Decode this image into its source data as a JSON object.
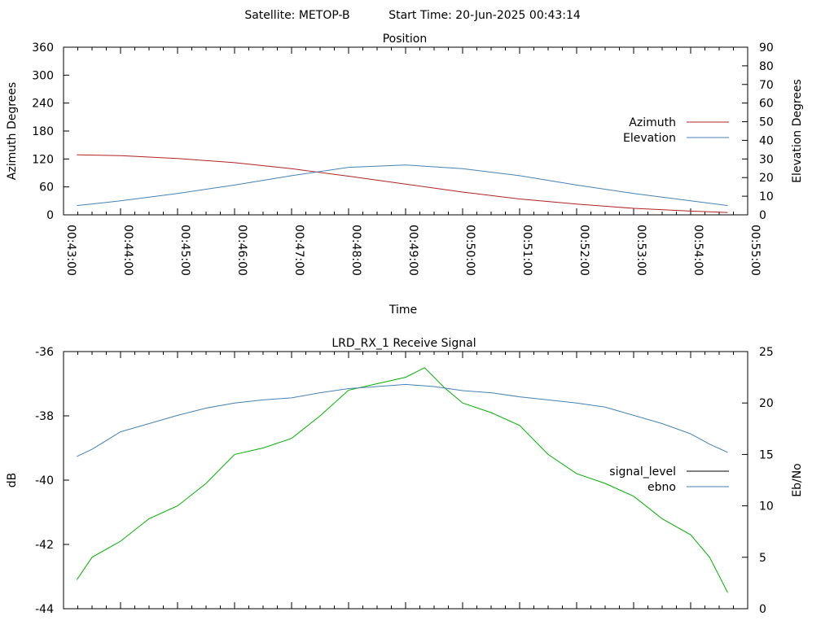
{
  "header": {
    "satellite": "Satellite: METOP-B",
    "start_time": "Start Time: 20-Jun-2025 00:43:14"
  },
  "chart_data": [
    {
      "type": "line",
      "title": "Position",
      "xlabel": "Time",
      "ylabel": "Azimuth Degrees",
      "y2label": "Elevation Degrees",
      "ylim": [
        0,
        360
      ],
      "y2lim": [
        0,
        90
      ],
      "yticks": [
        "0",
        "60",
        "120",
        "180",
        "240",
        "300",
        "360"
      ],
      "y2ticks": [
        "0",
        "10",
        "20",
        "30",
        "40",
        "50",
        "60",
        "70",
        "80",
        "90"
      ],
      "xticks": [
        "00:43:00",
        "00:44:00",
        "00:45:00",
        "00:46:00",
        "00:47:00",
        "00:48:00",
        "00:49:00",
        "00:50:00",
        "00:51:00",
        "00:52:00",
        "00:53:00",
        "00:54:00",
        "00:55:00"
      ],
      "legend_position": "right",
      "series": [
        {
          "name": "Azimuth",
          "axis": "left",
          "color": "#b22222",
          "x": [
            "00:43:14",
            "00:44:00",
            "00:45:00",
            "00:46:00",
            "00:47:00",
            "00:48:00",
            "00:49:00",
            "00:50:00",
            "00:51:00",
            "00:52:00",
            "00:53:00",
            "00:54:00",
            "00:54:39"
          ],
          "values": [
            129,
            127,
            121,
            112,
            99,
            83,
            66,
            49,
            34,
            23,
            14,
            8,
            5
          ]
        },
        {
          "name": "Elevation",
          "axis": "right",
          "color": "#4682b4",
          "x": [
            "00:43:14",
            "00:44:00",
            "00:45:00",
            "00:46:00",
            "00:47:00",
            "00:48:00",
            "00:49:00",
            "00:50:00",
            "00:51:00",
            "00:52:00",
            "00:53:00",
            "00:54:00",
            "00:54:39"
          ],
          "values": [
            5,
            7.5,
            11.5,
            16,
            21,
            25.5,
            26.8,
            24.8,
            21,
            16,
            11.5,
            7.5,
            5
          ]
        }
      ]
    },
    {
      "type": "line",
      "title": "LRD_RX_1 Receive Signal",
      "xlabel": "",
      "ylabel": "dB",
      "y2label": "Eb/No",
      "ylim": [
        -44,
        -36
      ],
      "y2lim": [
        0,
        25
      ],
      "yticks": [
        "-44",
        "-42",
        "-40",
        "-38",
        "-36"
      ],
      "y2ticks": [
        "0",
        "5",
        "10",
        "15",
        "20",
        "25"
      ],
      "legend_position": "right",
      "series": [
        {
          "name": "signal_level",
          "axis": "left",
          "legend_color": "#000000",
          "color": "#00b000",
          "x": [
            "00:43:14",
            "00:43:30",
            "00:44:00",
            "00:44:30",
            "00:45:00",
            "00:45:30",
            "00:46:00",
            "00:46:30",
            "00:47:00",
            "00:47:30",
            "00:48:00",
            "00:48:30",
            "00:49:00",
            "00:49:20",
            "00:49:40",
            "00:50:00",
            "00:50:30",
            "00:51:00",
            "00:51:30",
            "00:52:00",
            "00:52:30",
            "00:53:00",
            "00:53:30",
            "00:54:00",
            "00:54:20",
            "00:54:39"
          ],
          "values": [
            -43.1,
            -42.4,
            -41.9,
            -41.2,
            -40.8,
            -40.1,
            -39.2,
            -39.0,
            -38.7,
            -38.0,
            -37.2,
            -37.0,
            -36.8,
            -36.5,
            -37.1,
            -37.6,
            -37.9,
            -38.3,
            -39.2,
            -39.8,
            -40.1,
            -40.5,
            -41.2,
            -41.7,
            -42.4,
            -43.5
          ]
        },
        {
          "name": "ebno",
          "axis": "right",
          "color": "#4682b4",
          "x": [
            "00:43:14",
            "00:43:30",
            "00:44:00",
            "00:44:30",
            "00:45:00",
            "00:45:30",
            "00:46:00",
            "00:46:30",
            "00:47:00",
            "00:47:30",
            "00:48:00",
            "00:48:30",
            "00:49:00",
            "00:49:30",
            "00:50:00",
            "00:50:30",
            "00:51:00",
            "00:51:30",
            "00:52:00",
            "00:52:30",
            "00:53:00",
            "00:53:30",
            "00:54:00",
            "00:54:20",
            "00:54:39"
          ],
          "values": [
            14.8,
            15.5,
            17.2,
            18.0,
            18.8,
            19.5,
            20.0,
            20.3,
            20.5,
            21.0,
            21.4,
            21.6,
            21.8,
            21.6,
            21.2,
            21.0,
            20.6,
            20.3,
            20.0,
            19.6,
            18.8,
            18.0,
            17.0,
            16.0,
            15.2
          ]
        }
      ]
    }
  ]
}
